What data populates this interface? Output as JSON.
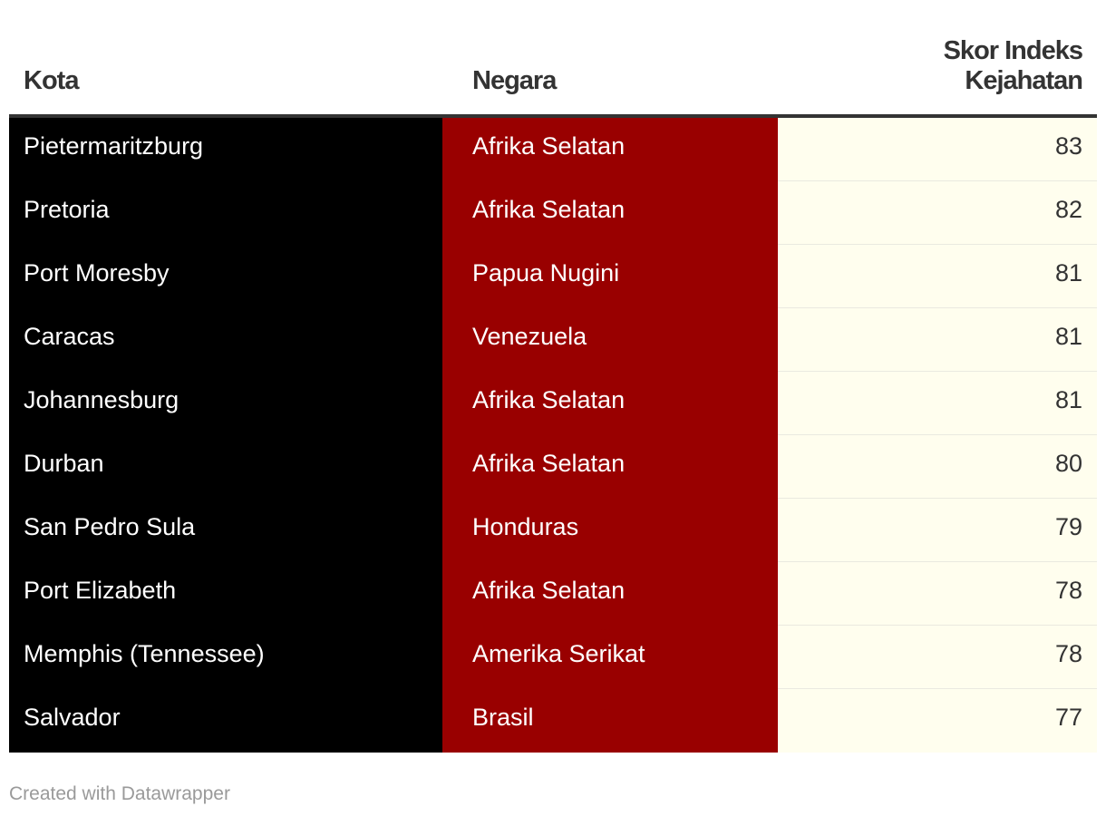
{
  "colors": {
    "city_column_bg": "#000000",
    "country_column_bg": "#990000",
    "score_column_bg": "#fffeee",
    "header_text": "#333333",
    "footer_text": "#9a9a9a"
  },
  "chart_data": {
    "type": "table",
    "columns": [
      "Kota",
      "Negara",
      "Skor Indeks Kejahatan"
    ],
    "rows": [
      {
        "city": "Pietermaritzburg",
        "country": "Afrika Selatan",
        "score": 83
      },
      {
        "city": "Pretoria",
        "country": "Afrika Selatan",
        "score": 82
      },
      {
        "city": "Port Moresby",
        "country": "Papua Nugini",
        "score": 81
      },
      {
        "city": "Caracas",
        "country": "Venezuela",
        "score": 81
      },
      {
        "city": "Johannesburg",
        "country": "Afrika Selatan",
        "score": 81
      },
      {
        "city": "Durban",
        "country": "Afrika Selatan",
        "score": 80
      },
      {
        "city": "San Pedro Sula",
        "country": "Honduras",
        "score": 79
      },
      {
        "city": "Port Elizabeth",
        "country": "Afrika Selatan",
        "score": 78
      },
      {
        "city": "Memphis (Tennessee)",
        "country": "Amerika Serikat",
        "score": 78
      },
      {
        "city": "Salvador",
        "country": "Brasil",
        "score": 77
      }
    ]
  },
  "footer": {
    "credit": "Created with Datawrapper"
  }
}
